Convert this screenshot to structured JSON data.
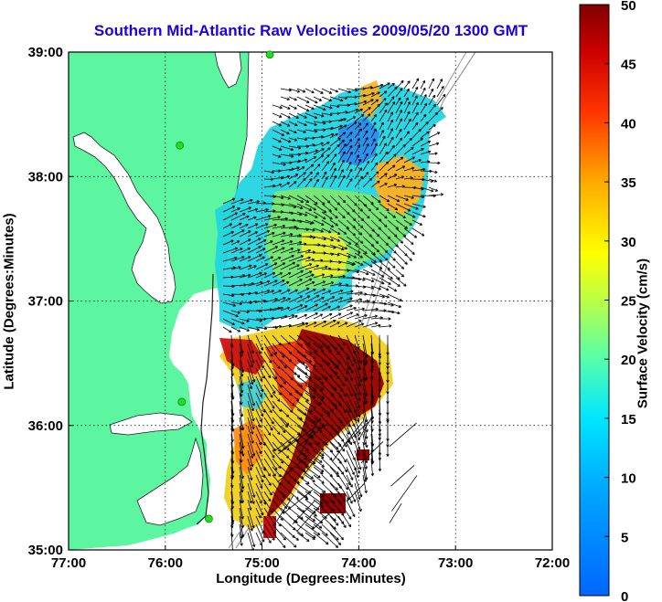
{
  "title": "Southern Mid-Atlantic Raw Velocities 2009/05/20 1300 GMT",
  "axes": {
    "xlabel": "Longitude (Degrees:Minutes)",
    "ylabel": "Latitude (Degrees:Minutes)",
    "x_ticks": [
      {
        "value": -77,
        "label": "77:00"
      },
      {
        "value": -76,
        "label": "76:00"
      },
      {
        "value": -75,
        "label": "75:00"
      },
      {
        "value": -74,
        "label": "74:00"
      },
      {
        "value": -73,
        "label": "73:00"
      },
      {
        "value": -72,
        "label": "72:00"
      }
    ],
    "y_ticks": [
      {
        "value": 35,
        "label": "35:00"
      },
      {
        "value": 36,
        "label": "36:00"
      },
      {
        "value": 37,
        "label": "37:00"
      },
      {
        "value": 38,
        "label": "38:00"
      },
      {
        "value": 39,
        "label": "39:00"
      }
    ],
    "xlim": [
      -77,
      -72
    ],
    "ylim": [
      35,
      39
    ],
    "grid": true
  },
  "colorbar": {
    "label": "Surface Velocity (cm/s)",
    "range": [
      0,
      50
    ],
    "ticks": [
      {
        "value": 0,
        "label": "0"
      },
      {
        "value": 5,
        "label": "5"
      },
      {
        "value": 10,
        "label": "10"
      },
      {
        "value": 15,
        "label": "15"
      },
      {
        "value": 20,
        "label": "20"
      },
      {
        "value": 25,
        "label": "25"
      },
      {
        "value": 30,
        "label": "30"
      },
      {
        "value": 35,
        "label": "35"
      },
      {
        "value": 40,
        "label": "40"
      },
      {
        "value": 45,
        "label": "45"
      },
      {
        "value": 50,
        "label": "50"
      }
    ],
    "colormap": "jet"
  },
  "colors": {
    "land": "#5cf5a0",
    "water": "#ffffff",
    "title": "#1a00e6",
    "arrows": "#000000",
    "bathymetry": "#9a9a9a",
    "stations": "#22dd22"
  },
  "map_layers": {
    "coastline": "Delmarva Peninsula, Chesapeake Bay, Virginia and North Carolina coast",
    "stations": [
      {
        "lon": -74.92,
        "lat": 38.98
      },
      {
        "lon": -75.85,
        "lat": 38.25
      },
      {
        "lon": -75.83,
        "lat": 36.19
      },
      {
        "lon": -75.55,
        "lat": 35.25
      }
    ]
  }
}
